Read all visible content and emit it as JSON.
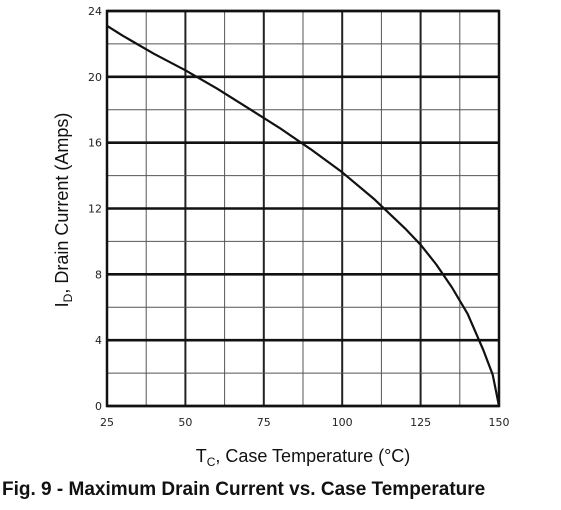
{
  "caption": "Fig. 9 - Maximum Drain Current vs. Case Temperature",
  "chart_data": {
    "type": "line",
    "title": "",
    "xlabel_main": "T",
    "xlabel_sub": "C",
    "xlabel_rest": ", Case Temperature (°C)",
    "ylabel_main": "I",
    "ylabel_sub": "D",
    "ylabel_rest": ", Drain Current (Amps)",
    "xlim": [
      25,
      150
    ],
    "ylim": [
      0,
      24
    ],
    "x_ticks": [
      {
        "value": 25,
        "label": "25"
      },
      {
        "value": 50,
        "label": "50"
      },
      {
        "value": 75,
        "label": "75"
      },
      {
        "value": 100,
        "label": "100"
      },
      {
        "value": 125,
        "label": "125"
      },
      {
        "value": 150,
        "label": "150"
      }
    ],
    "y_ticks": [
      {
        "value": 0,
        "label": "0"
      },
      {
        "value": 4,
        "label": "4"
      },
      {
        "value": 8,
        "label": "8"
      },
      {
        "value": 12,
        "label": "12"
      },
      {
        "value": 16,
        "label": "16"
      },
      {
        "value": 20,
        "label": "20"
      },
      {
        "value": 24,
        "label": "24"
      }
    ],
    "grid": true,
    "series": [
      {
        "color": "#111111",
        "x": [
          25,
          30,
          40,
          50,
          60,
          70,
          80,
          90,
          100,
          110,
          120,
          125,
          130,
          135,
          140,
          145,
          148,
          150
        ],
        "y": [
          23.1,
          22.5,
          21.4,
          20.4,
          19.3,
          18.1,
          16.9,
          15.6,
          14.2,
          12.6,
          10.8,
          9.8,
          8.6,
          7.2,
          5.6,
          3.4,
          1.9,
          0.0
        ]
      }
    ]
  }
}
